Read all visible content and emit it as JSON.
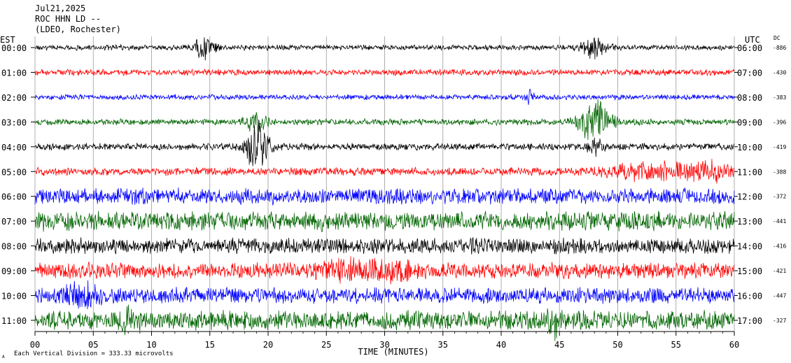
{
  "header": {
    "date": "Jul21,2025",
    "station": "ROC HHN LD --",
    "network": "(LDEO, Rochester)"
  },
  "left_axis_title": "EST",
  "right_axis_title": "UTC",
  "dc_title": "DC",
  "footer": {
    "scale_note": "Each Vertical Division =  333.33 microvolts",
    "corner_mark": "A"
  },
  "chart_data": {
    "type": "line",
    "xlabel": "TIME (MINUTES)",
    "xlim": [
      0,
      60
    ],
    "x_ticks": [
      0,
      5,
      10,
      15,
      20,
      25,
      30,
      35,
      40,
      45,
      50,
      55,
      60
    ],
    "x_tick_labels": [
      "00",
      "05",
      "10",
      "15",
      "20",
      "25",
      "30",
      "35",
      "40",
      "45",
      "50",
      "55",
      "60"
    ],
    "grid": true,
    "colors": [
      "#000000",
      "#ff0000",
      "#0000ff",
      "#006400"
    ],
    "rows": [
      {
        "est": "00:00",
        "utc": "06:00",
        "dc": "-886",
        "color": "#000000"
      },
      {
        "est": "01:00",
        "utc": "07:00",
        "dc": "-430",
        "color": "#ff0000"
      },
      {
        "est": "02:00",
        "utc": "08:00",
        "dc": "-383",
        "color": "#0000ff"
      },
      {
        "est": "03:00",
        "utc": "09:00",
        "dc": "-396",
        "color": "#006400"
      },
      {
        "est": "04:00",
        "utc": "10:00",
        "dc": "-419",
        "color": "#000000"
      },
      {
        "est": "05:00",
        "utc": "11:00",
        "dc": "-388",
        "color": "#ff0000"
      },
      {
        "est": "06:00",
        "utc": "12:00",
        "dc": "-372",
        "color": "#0000ff"
      },
      {
        "est": "07:00",
        "utc": "13:00",
        "dc": "-441",
        "color": "#006400"
      },
      {
        "est": "08:00",
        "utc": "14:00",
        "dc": "-416",
        "color": "#000000"
      },
      {
        "est": "09:00",
        "utc": "15:00",
        "dc": "-421",
        "color": "#ff0000"
      },
      {
        "est": "10:00",
        "utc": "16:00",
        "dc": "-447",
        "color": "#0000ff"
      },
      {
        "est": "11:00",
        "utc": "17:00",
        "dc": "-327",
        "color": "#006400"
      }
    ]
  }
}
